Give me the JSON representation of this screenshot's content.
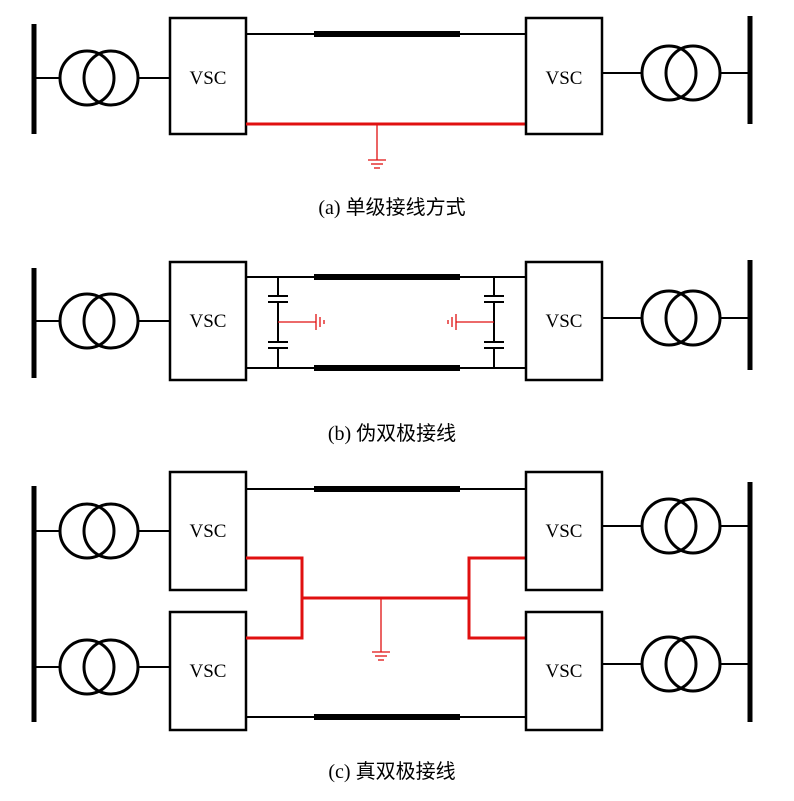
{
  "converter_label": "VSC",
  "captions": {
    "a": "(a)  单级接线方式",
    "b": "(b)  伪双极接线",
    "c": "(c)  真双极接线"
  },
  "colors": {
    "line": "#000000",
    "ground_path": "#e01010"
  },
  "icons": [
    "transformer-icon",
    "ground-icon",
    "capacitor-icon",
    "busbar"
  ]
}
